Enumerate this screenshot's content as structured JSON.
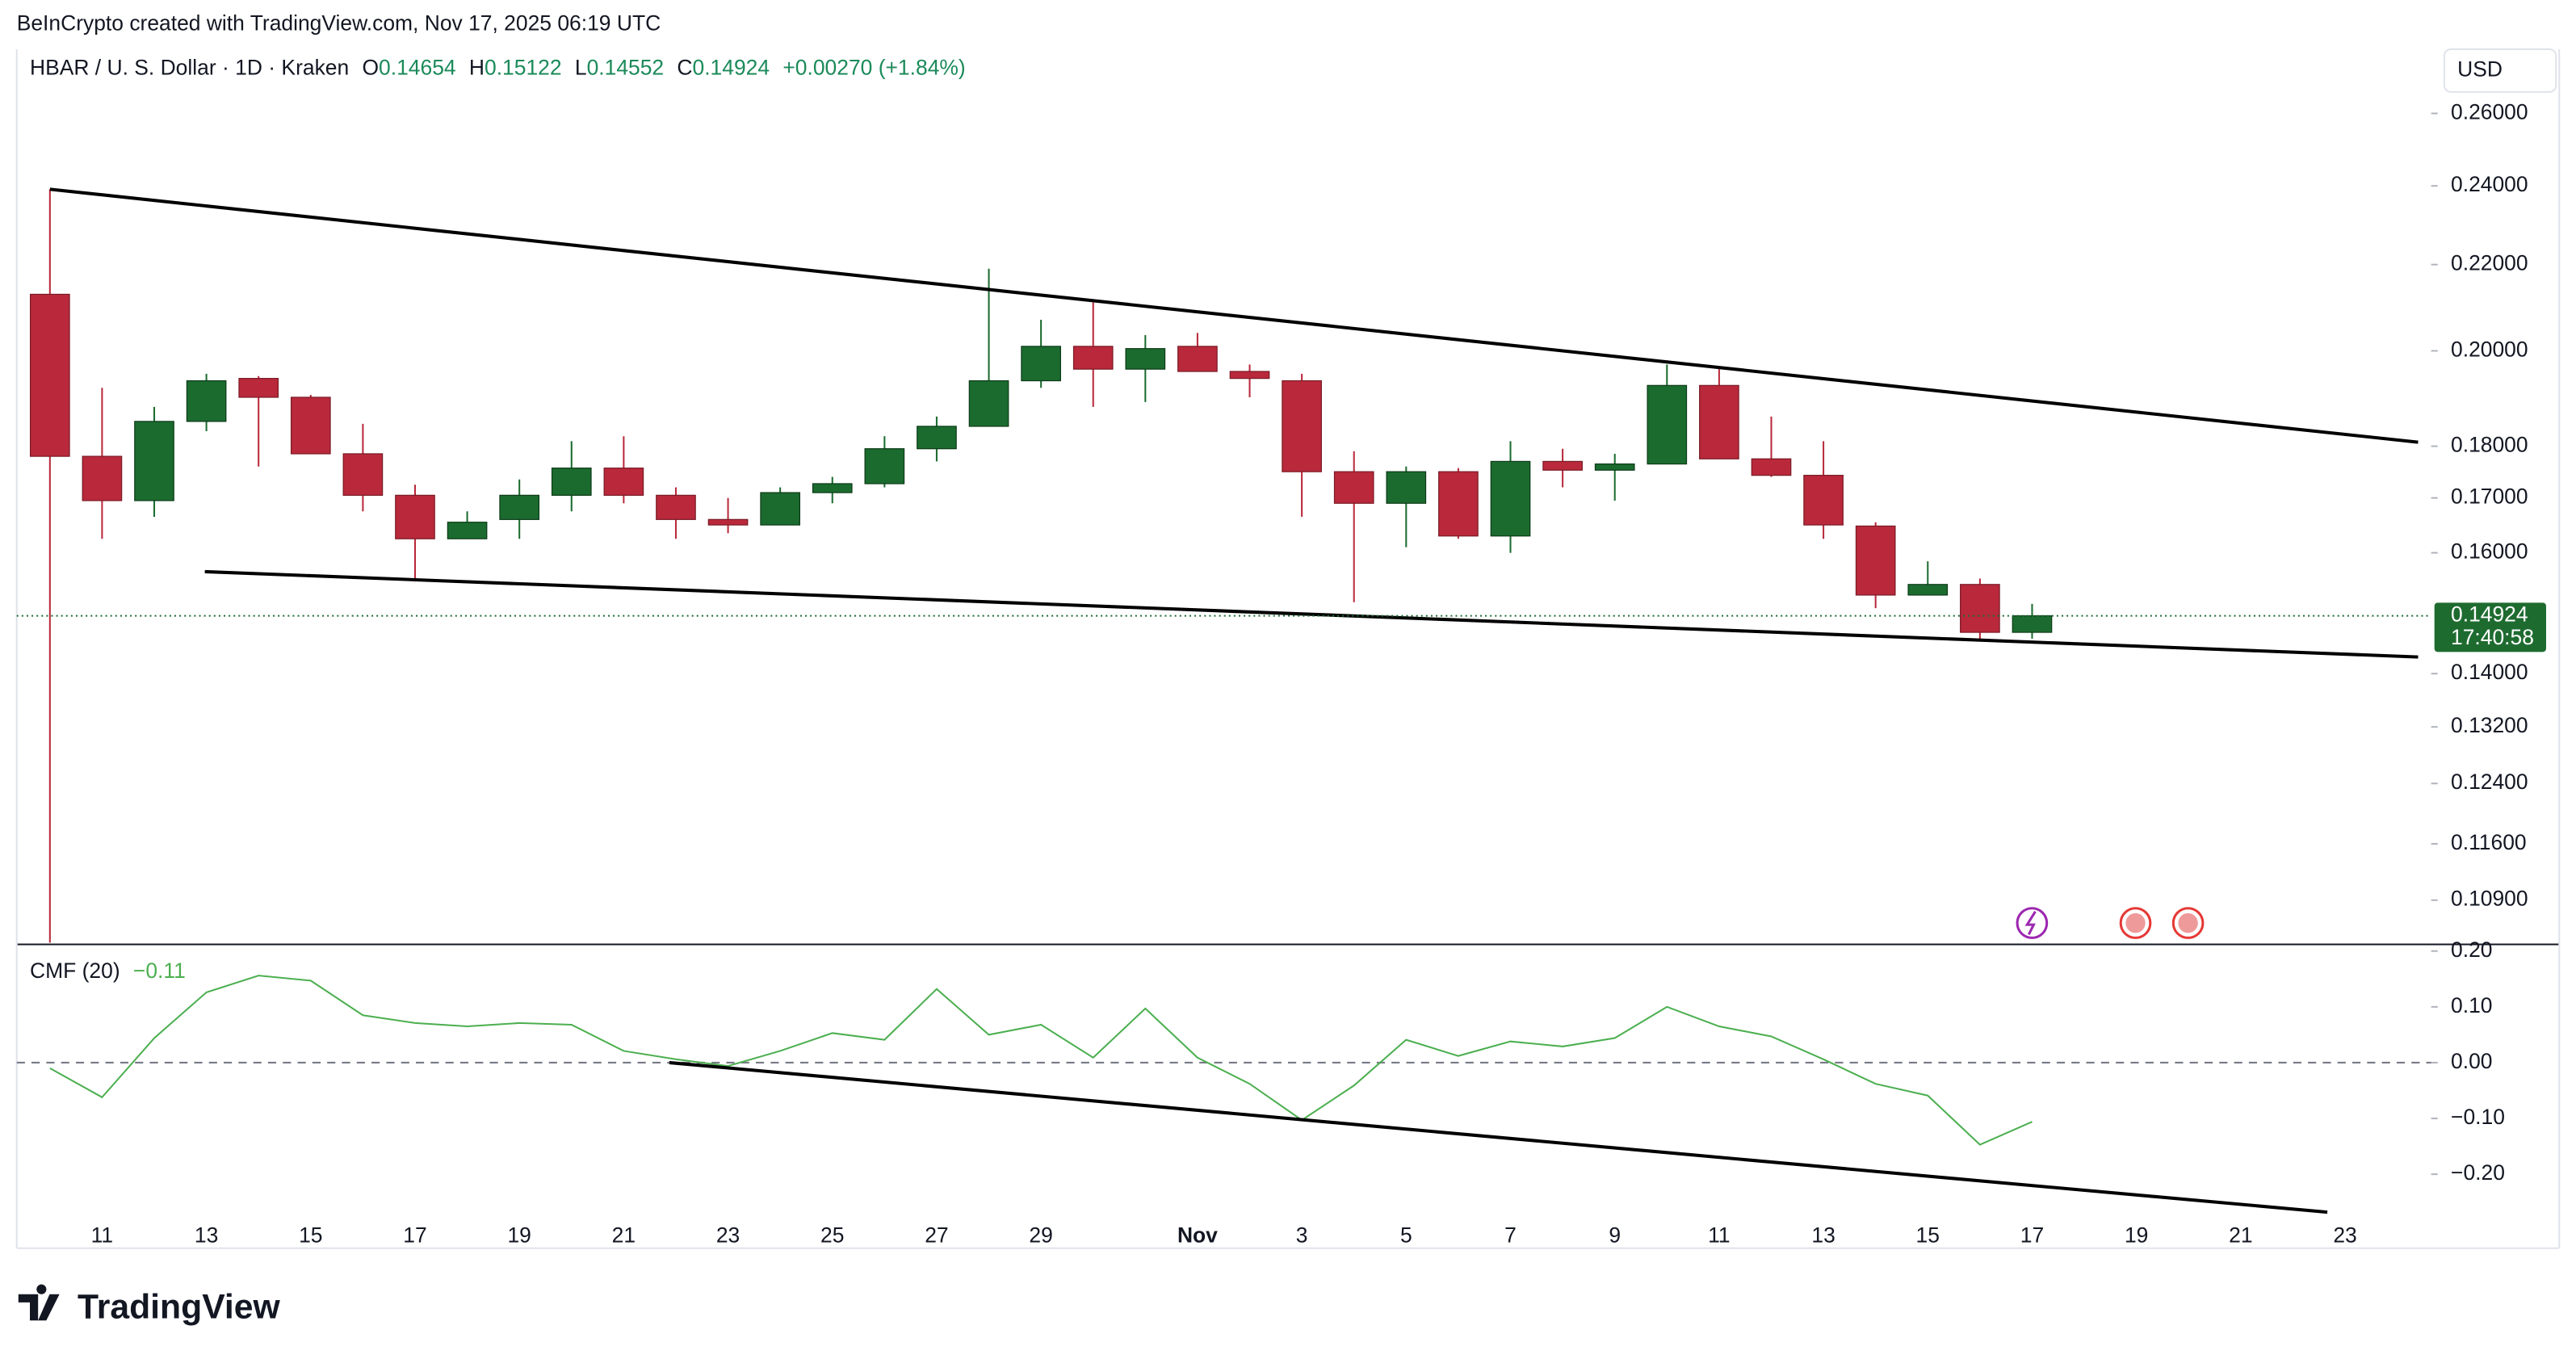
{
  "header": {
    "credit": "BeInCrypto created with TradingView.com, Nov 17, 2025 06:19 UTC",
    "symbol": "HBAR / U. S. Dollar · 1D · Kraken",
    "ohlc": [
      {
        "label": "O",
        "value": "0.14654"
      },
      {
        "label": "H",
        "value": "0.15122"
      },
      {
        "label": "L",
        "value": "0.14552"
      },
      {
        "label": "C",
        "value": "0.14924"
      }
    ],
    "change": "+0.00270 (+1.84%)",
    "currency": "USD",
    "brand": "TradingView"
  },
  "chart_data": [
    {
      "type": "candlestick",
      "log_scale": true,
      "up_color": "#1b6b2f",
      "down_color": "#b9293b",
      "x": [
        0,
        1,
        2,
        3,
        4,
        5,
        6,
        7,
        8,
        9,
        10,
        11,
        12,
        13,
        14,
        15,
        16,
        17,
        18,
        19,
        20,
        21,
        22,
        23,
        24,
        25,
        26,
        27,
        28,
        29,
        30,
        31,
        32,
        33,
        34,
        35,
        36,
        37,
        38
      ],
      "open": [
        0.2129,
        0.178,
        0.1695,
        0.185,
        0.194,
        0.19,
        0.1785,
        0.1705,
        0.1625,
        0.166,
        0.1705,
        0.1757,
        0.1705,
        0.166,
        0.165,
        0.171,
        0.1727,
        0.1795,
        0.184,
        0.1935,
        0.201,
        0.196,
        0.201,
        0.1955,
        0.1935,
        0.175,
        0.169,
        0.175,
        0.163,
        0.177,
        0.1753,
        0.1765,
        0.1925,
        0.1775,
        0.1743,
        0.1648,
        0.1527,
        0.1545,
        0.14654
      ],
      "high": [
        0.2391,
        0.192,
        0.188,
        0.195,
        0.1945,
        0.1905,
        0.1845,
        0.1725,
        0.1675,
        0.1735,
        0.181,
        0.182,
        0.172,
        0.17,
        0.172,
        0.174,
        0.182,
        0.186,
        0.219,
        0.207,
        0.211,
        0.2035,
        0.204,
        0.197,
        0.195,
        0.179,
        0.176,
        0.1757,
        0.181,
        0.1795,
        0.1785,
        0.197,
        0.196,
        0.186,
        0.181,
        0.1655,
        0.1585,
        0.1555,
        0.15122
      ],
      "low": [
        0.104,
        0.1625,
        0.1665,
        0.183,
        0.176,
        0.1785,
        0.1675,
        0.155,
        0.1625,
        0.1625,
        0.1675,
        0.169,
        0.1625,
        0.1635,
        0.165,
        0.169,
        0.172,
        0.177,
        0.184,
        0.192,
        0.188,
        0.189,
        0.1955,
        0.19,
        0.1665,
        0.1515,
        0.161,
        0.1625,
        0.16,
        0.172,
        0.1695,
        0.1765,
        0.1775,
        0.174,
        0.1625,
        0.1505,
        0.1527,
        0.1455,
        0.14552
      ],
      "close": [
        0.178,
        0.1695,
        0.185,
        0.1935,
        0.19,
        0.1785,
        0.1705,
        0.1625,
        0.1655,
        0.1705,
        0.1757,
        0.1705,
        0.166,
        0.165,
        0.171,
        0.1727,
        0.1795,
        0.184,
        0.1935,
        0.201,
        0.196,
        0.2005,
        0.1955,
        0.194,
        0.175,
        0.169,
        0.175,
        0.163,
        0.177,
        0.1753,
        0.1765,
        0.1925,
        0.1775,
        0.1743,
        0.165,
        0.1527,
        0.1545,
        0.14654,
        0.14924
      ],
      "xlim": [
        -0.636,
        45.65
      ],
      "xticks": [
        {
          "value": 1,
          "label": "11"
        },
        {
          "value": 3,
          "label": "13"
        },
        {
          "value": 5,
          "label": "15"
        },
        {
          "value": 7,
          "label": "17"
        },
        {
          "value": 9,
          "label": "19"
        },
        {
          "value": 11,
          "label": "21"
        },
        {
          "value": 13,
          "label": "23"
        },
        {
          "value": 15,
          "label": "25"
        },
        {
          "value": 17,
          "label": "27"
        },
        {
          "value": 19,
          "label": "29"
        },
        {
          "value": 22,
          "label": "Nov"
        },
        {
          "value": 24,
          "label": "3"
        },
        {
          "value": 26,
          "label": "5"
        },
        {
          "value": 28,
          "label": "7"
        },
        {
          "value": 30,
          "label": "9"
        },
        {
          "value": 32,
          "label": "11"
        },
        {
          "value": 34,
          "label": "13"
        },
        {
          "value": 36,
          "label": "15"
        },
        {
          "value": 38,
          "label": "17"
        },
        {
          "value": 40,
          "label": "19"
        },
        {
          "value": 42,
          "label": "21"
        },
        {
          "value": 44,
          "label": "23"
        }
      ],
      "ylim": [
        0.1038,
        0.2791
      ],
      "yticks": [
        {
          "value": 0.26,
          "label": "0.26000"
        },
        {
          "value": 0.24,
          "label": "0.24000"
        },
        {
          "value": 0.22,
          "label": "0.22000"
        },
        {
          "value": 0.2,
          "label": "0.20000"
        },
        {
          "value": 0.18,
          "label": "0.18000"
        },
        {
          "value": 0.17,
          "label": "0.17000"
        },
        {
          "value": 0.16,
          "label": "0.16000"
        },
        {
          "value": 0.14,
          "label": "0.14000"
        },
        {
          "value": 0.132,
          "label": "0.13200"
        },
        {
          "value": 0.124,
          "label": "0.12400"
        },
        {
          "value": 0.116,
          "label": "0.11600"
        },
        {
          "value": 0.109,
          "label": "0.10900"
        }
      ],
      "last_price": {
        "value": 0.14924,
        "label": "0.14924",
        "countdown": "17:40:58",
        "color": "#1e6b30"
      },
      "trendlines": [
        {
          "x": [
            0,
            45.4
          ],
          "y": [
            0.2391,
            0.1808
          ]
        },
        {
          "x": [
            2.97,
            45.4
          ],
          "y": [
            0.1567,
            0.1426
          ]
        }
      ]
    },
    {
      "type": "line",
      "title": "CMF (20)",
      "value_label": "−0.11",
      "color": "#4caf50",
      "x": [
        0,
        1,
        2,
        3,
        4,
        5,
        6,
        7,
        8,
        9,
        10,
        11,
        12,
        13,
        14,
        15,
        16,
        17,
        18,
        19,
        20,
        21,
        22,
        23,
        24,
        25,
        26,
        27,
        28,
        29,
        30,
        31,
        32,
        33,
        34,
        35,
        36,
        37,
        38
      ],
      "values": [
        -0.01,
        -0.062,
        0.044,
        0.126,
        0.156,
        0.147,
        0.085,
        0.071,
        0.065,
        0.071,
        0.068,
        0.021,
        0.006,
        -0.006,
        0.021,
        0.053,
        0.041,
        0.132,
        0.05,
        0.068,
        0.009,
        0.097,
        0.009,
        -0.038,
        -0.103,
        -0.041,
        0.041,
        0.012,
        0.038,
        0.029,
        0.044,
        0.1,
        0.065,
        0.047,
        0.006,
        -0.038,
        -0.059,
        -0.147,
        -0.106
      ],
      "ylim": [
        -0.315,
        0.209
      ],
      "yticks": [
        {
          "value": 0.2,
          "label": "0.20"
        },
        {
          "value": 0.1,
          "label": "0.10"
        },
        {
          "value": 0,
          "label": "0.00"
        },
        {
          "value": -0.1,
          "label": "−0.10"
        },
        {
          "value": -0.2,
          "label": "−0.20"
        }
      ],
      "zero_line": 0,
      "trendlines": [
        {
          "x": [
            11.875,
            43.66
          ],
          "y": [
            0,
            -0.268
          ]
        }
      ]
    }
  ]
}
